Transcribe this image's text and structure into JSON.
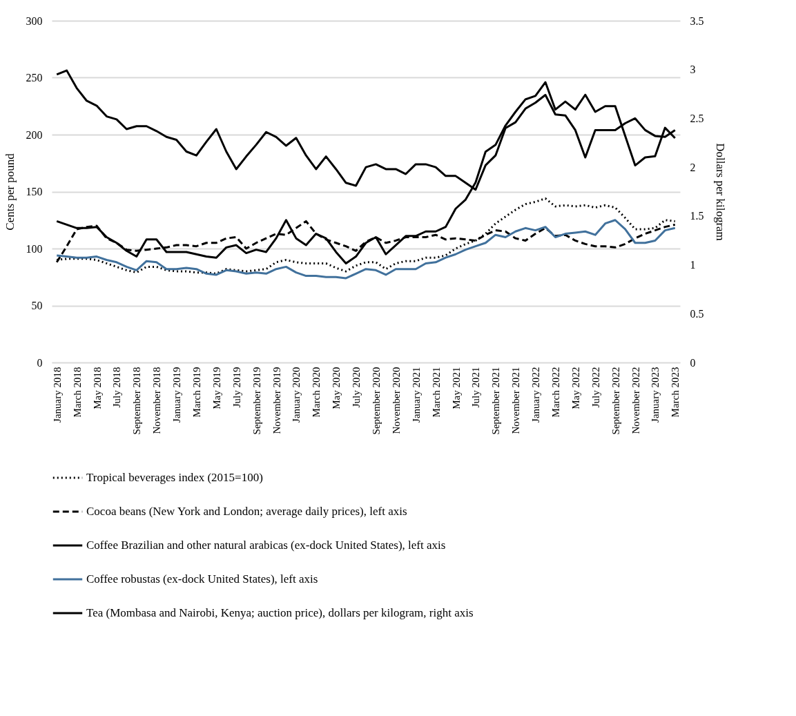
{
  "chart_data": {
    "type": "line",
    "categories": [
      "January 2018",
      null,
      "March 2018",
      null,
      "May 2018",
      null,
      "July 2018",
      null,
      "September 2018",
      null,
      "November 2018",
      null,
      "January 2019",
      null,
      "March 2019",
      null,
      "May 2019",
      null,
      "July 2019",
      null,
      "September 2019",
      null,
      "November 2019",
      null,
      "January 2020",
      null,
      "March 2020",
      null,
      "May 2020",
      null,
      "July 2020",
      null,
      "September 2020",
      null,
      "November 2020",
      null,
      "January 2021",
      null,
      "March 2021",
      null,
      "May 2021",
      null,
      "July 2021",
      null,
      "September 2021",
      null,
      "November 2021",
      null,
      "January 2022",
      null,
      "March 2022",
      null,
      "May 2022",
      null,
      "July 2022",
      null,
      "September 2022",
      null,
      "November 2022",
      null,
      "January 2023",
      null,
      "March 2023"
    ],
    "ylabel": "Cents per pound",
    "y2label": "Dollars per kilogram",
    "ylim": [
      0,
      300
    ],
    "yticks": [
      0,
      50,
      100,
      150,
      200,
      250,
      300
    ],
    "y2lim": [
      0,
      3.5
    ],
    "y2ticks": [
      0,
      0.5,
      1,
      1.5,
      2,
      2.5,
      3,
      3.5
    ],
    "grid": "y",
    "legend": "bottom",
    "series": [
      {
        "name": "Tropical beverages index (2015=100)",
        "color": "#000000",
        "line_style": "dotted",
        "values": [
          90,
          91,
          91,
          91,
          90,
          87,
          84,
          81,
          79,
          84,
          84,
          81,
          80,
          80,
          79,
          79,
          78,
          82,
          81,
          80,
          81,
          82,
          88,
          90,
          88,
          87,
          87,
          87,
          83,
          80,
          85,
          88,
          88,
          82,
          87,
          89,
          89,
          92,
          92,
          94,
          100,
          104,
          107,
          113,
          122,
          128,
          134,
          139,
          141,
          144,
          137,
          138,
          137,
          138,
          136,
          138,
          136,
          127,
          117,
          117,
          118,
          125,
          124
        ]
      },
      {
        "name": "Cocoa beans (New York and London; average daily prices), left axis",
        "color": "#000000",
        "line_style": "dashed",
        "values": [
          88,
          102,
          117,
          119,
          120,
          109,
          105,
          99,
          98,
          99,
          100,
          101,
          103,
          103,
          102,
          105,
          105,
          109,
          110,
          100,
          105,
          109,
          113,
          112,
          118,
          124,
          113,
          108,
          105,
          102,
          98,
          106,
          110,
          105,
          107,
          110,
          110,
          110,
          112,
          108,
          109,
          108,
          107,
          112,
          116,
          115,
          109,
          107,
          113,
          118,
          111,
          112,
          107,
          104,
          102,
          102,
          101,
          104,
          109,
          113,
          116,
          119,
          121
        ]
      },
      {
        "name": "Coffee Brazilian and other natural arabicas (ex-dock United States), left axis",
        "color": "#000000",
        "line_style": "solid",
        "values": [
          124,
          121,
          118,
          118,
          119,
          110,
          105,
          98,
          93,
          108,
          108,
          97,
          97,
          97,
          95,
          93,
          92,
          101,
          103,
          96,
          99,
          97,
          109,
          125,
          109,
          103,
          113,
          109,
          97,
          87,
          93,
          105,
          110,
          95,
          103,
          111,
          111,
          115,
          115,
          119,
          135,
          143,
          158,
          185,
          191,
          208,
          220,
          231,
          234,
          246,
          222,
          229,
          222,
          235,
          220,
          225,
          225,
          199,
          173,
          180,
          181,
          206,
          197
        ]
      },
      {
        "name": "Coffee robustas (ex-dock United States), left axis",
        "color": "#41719c",
        "line_style": "solid",
        "values": [
          94,
          93,
          92,
          92,
          93,
          90,
          88,
          84,
          81,
          89,
          88,
          82,
          82,
          83,
          82,
          78,
          77,
          81,
          80,
          78,
          79,
          78,
          82,
          84,
          79,
          76,
          76,
          75,
          75,
          74,
          78,
          82,
          81,
          77,
          82,
          82,
          82,
          87,
          88,
          92,
          95,
          99,
          102,
          105,
          112,
          110,
          115,
          118,
          116,
          119,
          110,
          113,
          114,
          115,
          112,
          122,
          125,
          117,
          105,
          105,
          107,
          116,
          118
        ]
      },
      {
        "name": "Tea (Mombasa and Nairobi, Kenya; auction price), dollars per kilogram, right axis",
        "color": "#000000",
        "line_style": "solid",
        "axis": "y2",
        "values": [
          2.95,
          2.99,
          2.81,
          2.68,
          2.63,
          2.52,
          2.49,
          2.39,
          2.42,
          2.42,
          2.37,
          2.31,
          2.28,
          2.16,
          2.12,
          2.26,
          2.39,
          2.16,
          1.98,
          2.11,
          2.23,
          2.36,
          2.31,
          2.22,
          2.3,
          2.12,
          1.98,
          2.11,
          1.98,
          1.84,
          1.81,
          2.0,
          2.03,
          1.98,
          1.98,
          1.93,
          2.03,
          2.03,
          2.0,
          1.91,
          1.91,
          1.84,
          1.77,
          2.02,
          2.12,
          2.4,
          2.46,
          2.6,
          2.66,
          2.74,
          2.54,
          2.53,
          2.38,
          2.1,
          2.38,
          2.38,
          2.38,
          2.45,
          2.5,
          2.38,
          2.32,
          2.31,
          2.38
        ]
      }
    ]
  }
}
